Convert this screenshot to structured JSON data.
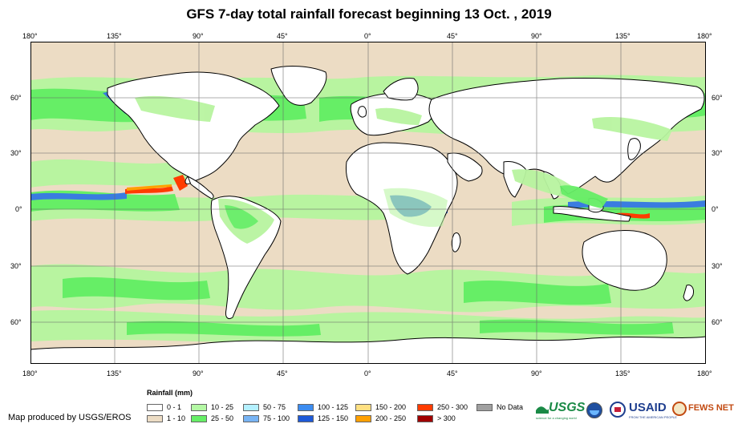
{
  "title": "GFS 7-day total rainfall forecast beginning 13 Oct. , 2019",
  "map": {
    "top_lon_labels": [
      "180°",
      "135°",
      "90°",
      "45°",
      "0°",
      "45°",
      "90°",
      "135°",
      "180°"
    ],
    "bottom_lon_labels": [
      "180°",
      "135°",
      "90°",
      "45°",
      "0°",
      "45°",
      "90°",
      "135°",
      "180°"
    ],
    "left_lat_labels": [
      "60°",
      "30°",
      "0°",
      "30°",
      "60°"
    ],
    "right_lat_labels": [
      "60°",
      "30°",
      "0°",
      "30°",
      "60°"
    ],
    "colors": {
      "ocean_base": "#ecdcc4",
      "land_base": "#ffffff",
      "light_green": "#b8f4a0",
      "green": "#66ee66",
      "blue": "#3a7ce0"
    }
  },
  "legend": {
    "title": "Rainfall (mm)",
    "items": [
      {
        "label": "0 - 1",
        "color": "#ffffff"
      },
      {
        "label": "1 - 10",
        "color": "#ecdcc4"
      },
      {
        "label": "10 - 25",
        "color": "#b4f8a4"
      },
      {
        "label": "25 - 50",
        "color": "#66ee66"
      },
      {
        "label": "50 - 75",
        "color": "#b4f0ff"
      },
      {
        "label": "75 - 100",
        "color": "#78b4f4"
      },
      {
        "label": "100 - 125",
        "color": "#3c8cf0"
      },
      {
        "label": "125 - 150",
        "color": "#1e5ad8"
      },
      {
        "label": "150 - 200",
        "color": "#ffe082"
      },
      {
        "label": "200 - 250",
        "color": "#ffa000"
      },
      {
        "label": "250 - 300",
        "color": "#ff3c00"
      },
      {
        "label": "> 300",
        "color": "#a00000"
      },
      {
        "label": "No Data",
        "color": "#a0a0a0"
      }
    ]
  },
  "credit": "Map produced by USGS/EROS",
  "logos": {
    "usgs": "USGS",
    "usgs_tagline": "science for a changing world",
    "usaid": "USAID",
    "usaid_tagline": "FROM THE AMERICAN PEOPLE",
    "fews": "FEWS NET"
  }
}
